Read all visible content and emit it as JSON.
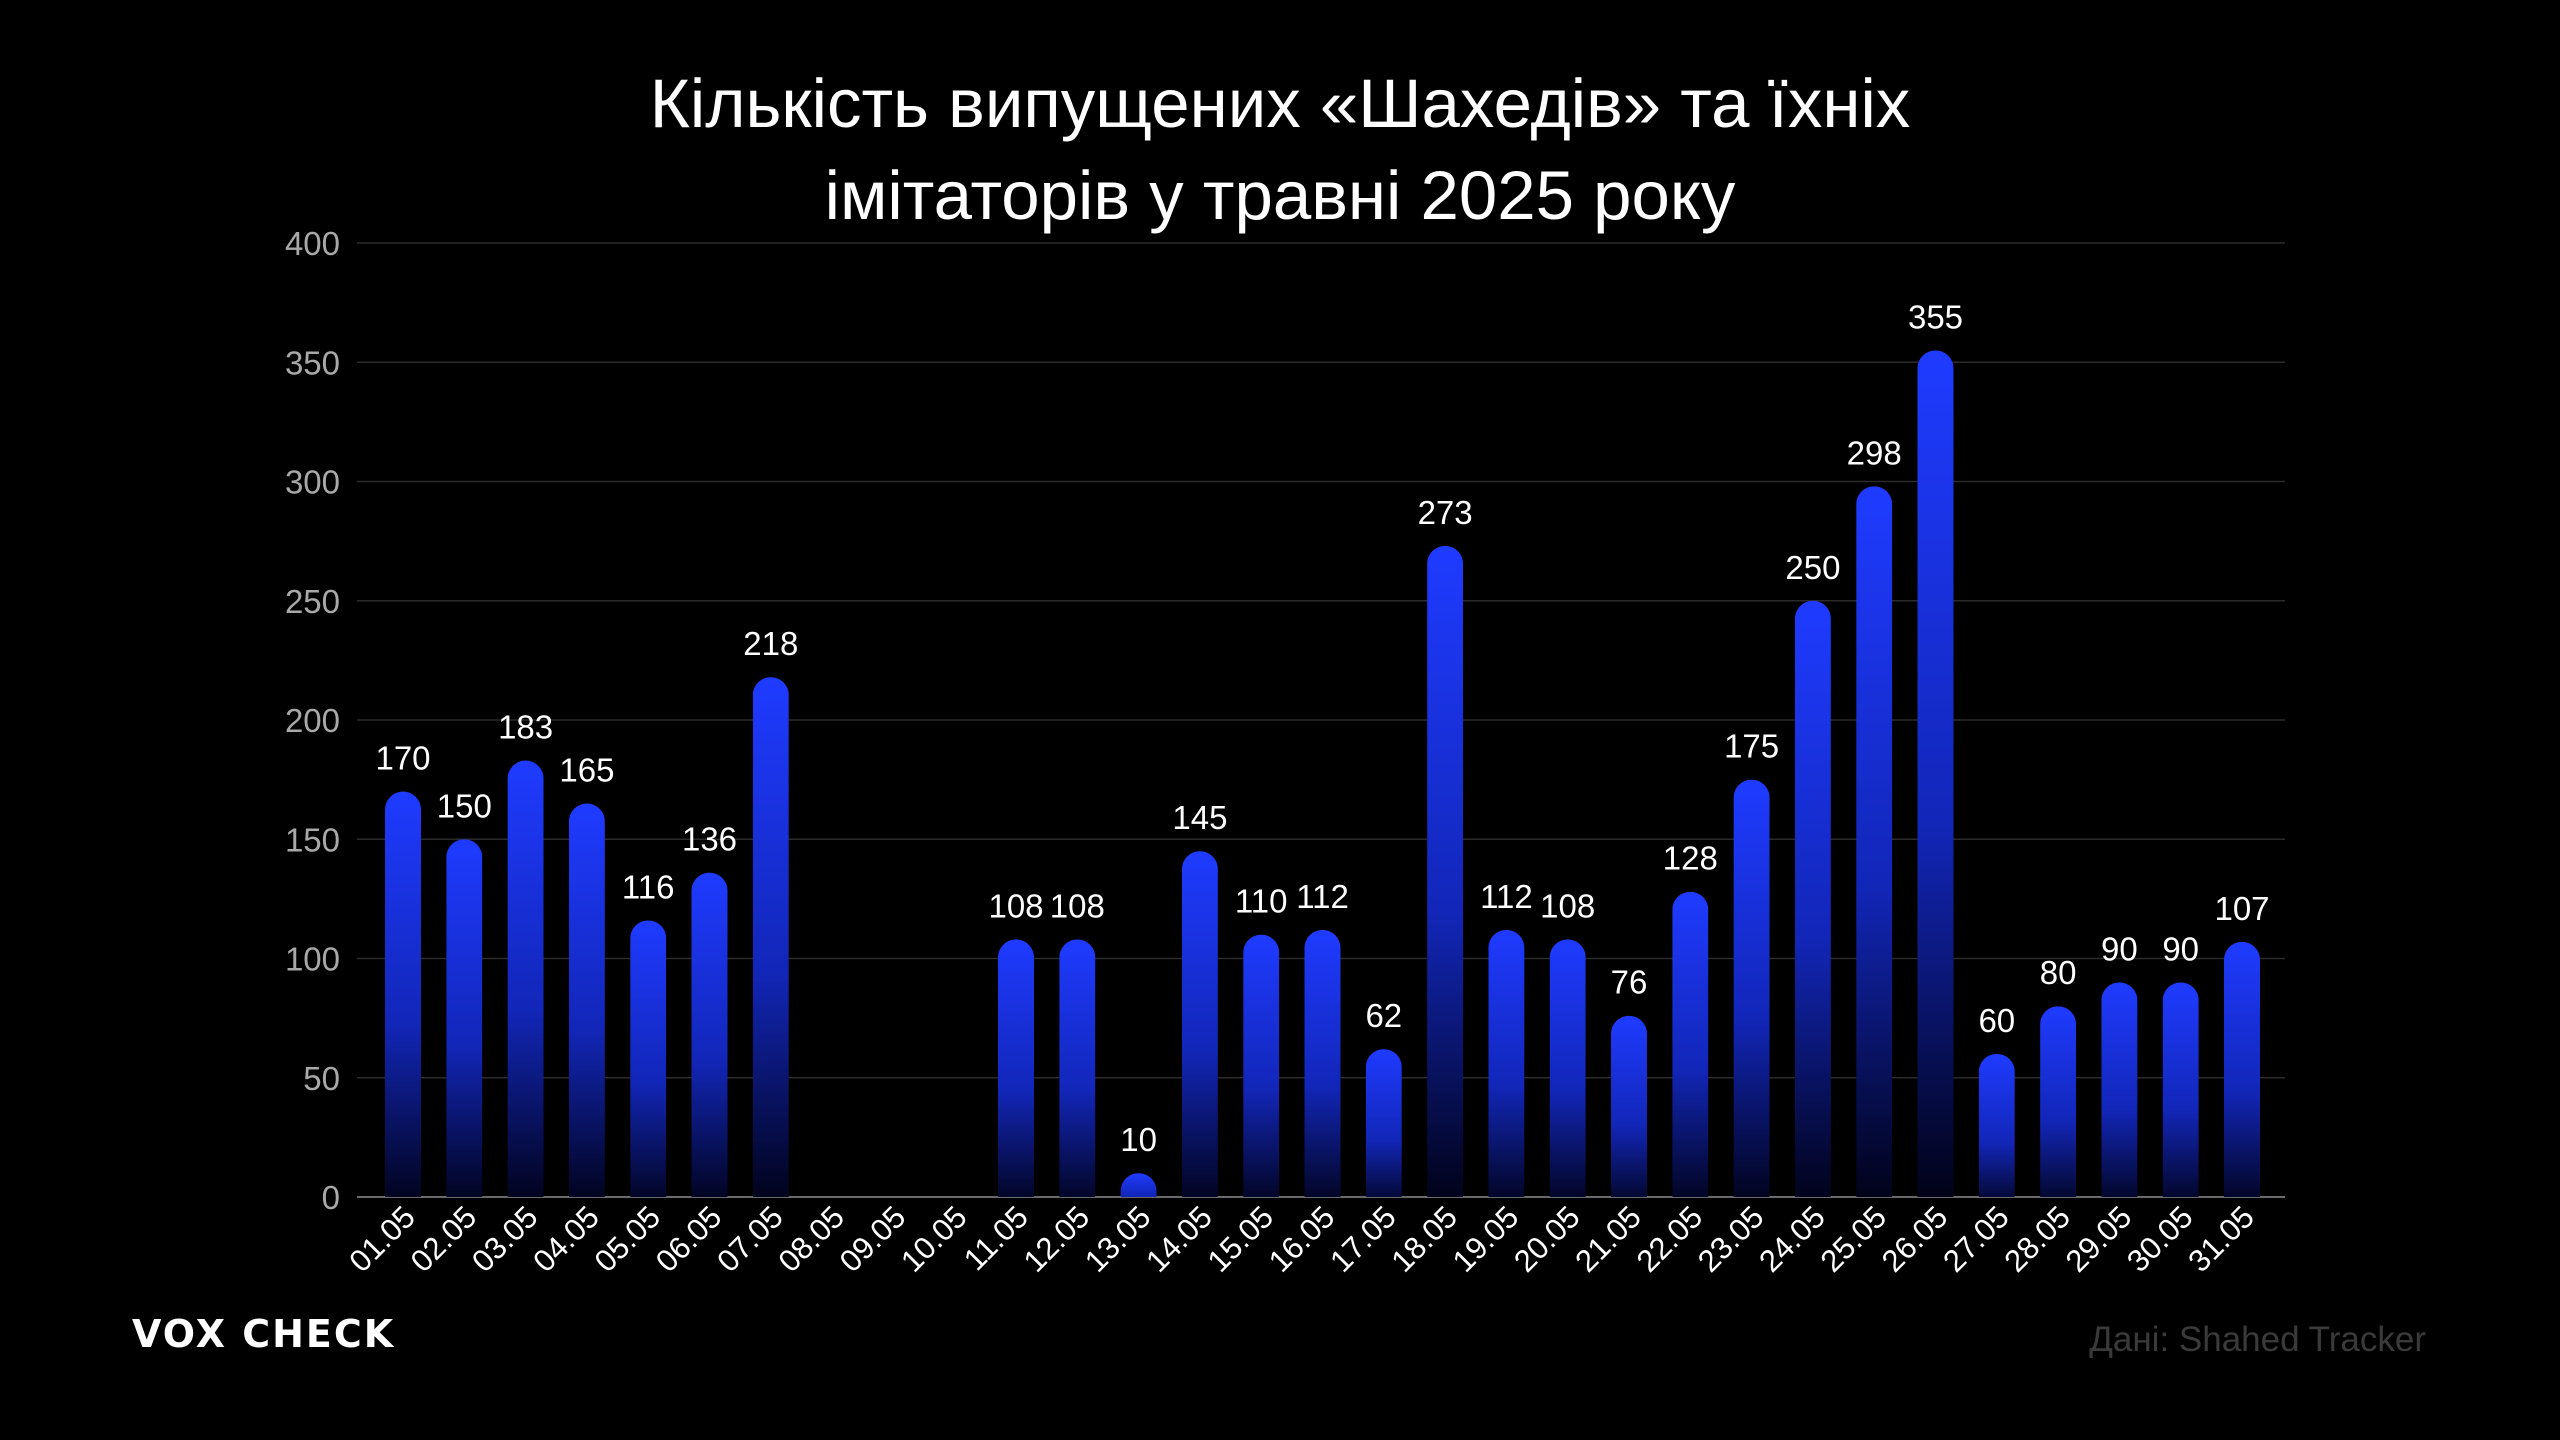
{
  "chart_data": {
    "type": "bar",
    "title_lines": [
      "Кількість випущених «Шахедів» та їхніх",
      "імітаторів у травні 2025 року"
    ],
    "categories": [
      "01.05",
      "02.05",
      "03.05",
      "04.05",
      "05.05",
      "06.05",
      "07.05",
      "08.05",
      "09.05",
      "10.05",
      "11.05",
      "12.05",
      "13.05",
      "14.05",
      "15.05",
      "16.05",
      "17.05",
      "18.05",
      "19.05",
      "20.05",
      "21.05",
      "22.05",
      "23.05",
      "24.05",
      "25.05",
      "26.05",
      "27.05",
      "28.05",
      "29.05",
      "30.05",
      "31.05"
    ],
    "values": [
      170,
      150,
      183,
      165,
      116,
      136,
      218,
      null,
      null,
      null,
      108,
      108,
      10,
      145,
      110,
      112,
      62,
      273,
      112,
      108,
      76,
      128,
      175,
      250,
      298,
      355,
      60,
      80,
      90,
      90,
      107
    ],
    "y_ticks": [
      0,
      50,
      100,
      150,
      200,
      250,
      300,
      350,
      400
    ],
    "ylim": [
      0,
      400
    ],
    "grid": true,
    "bar_color_top": "#1f3bff",
    "bar_color_bottom": "#000010",
    "grid_color": "#2b2b2b"
  },
  "footer": {
    "logo": "VOX CHECK",
    "source": "Дані: Shahed Tracker"
  }
}
